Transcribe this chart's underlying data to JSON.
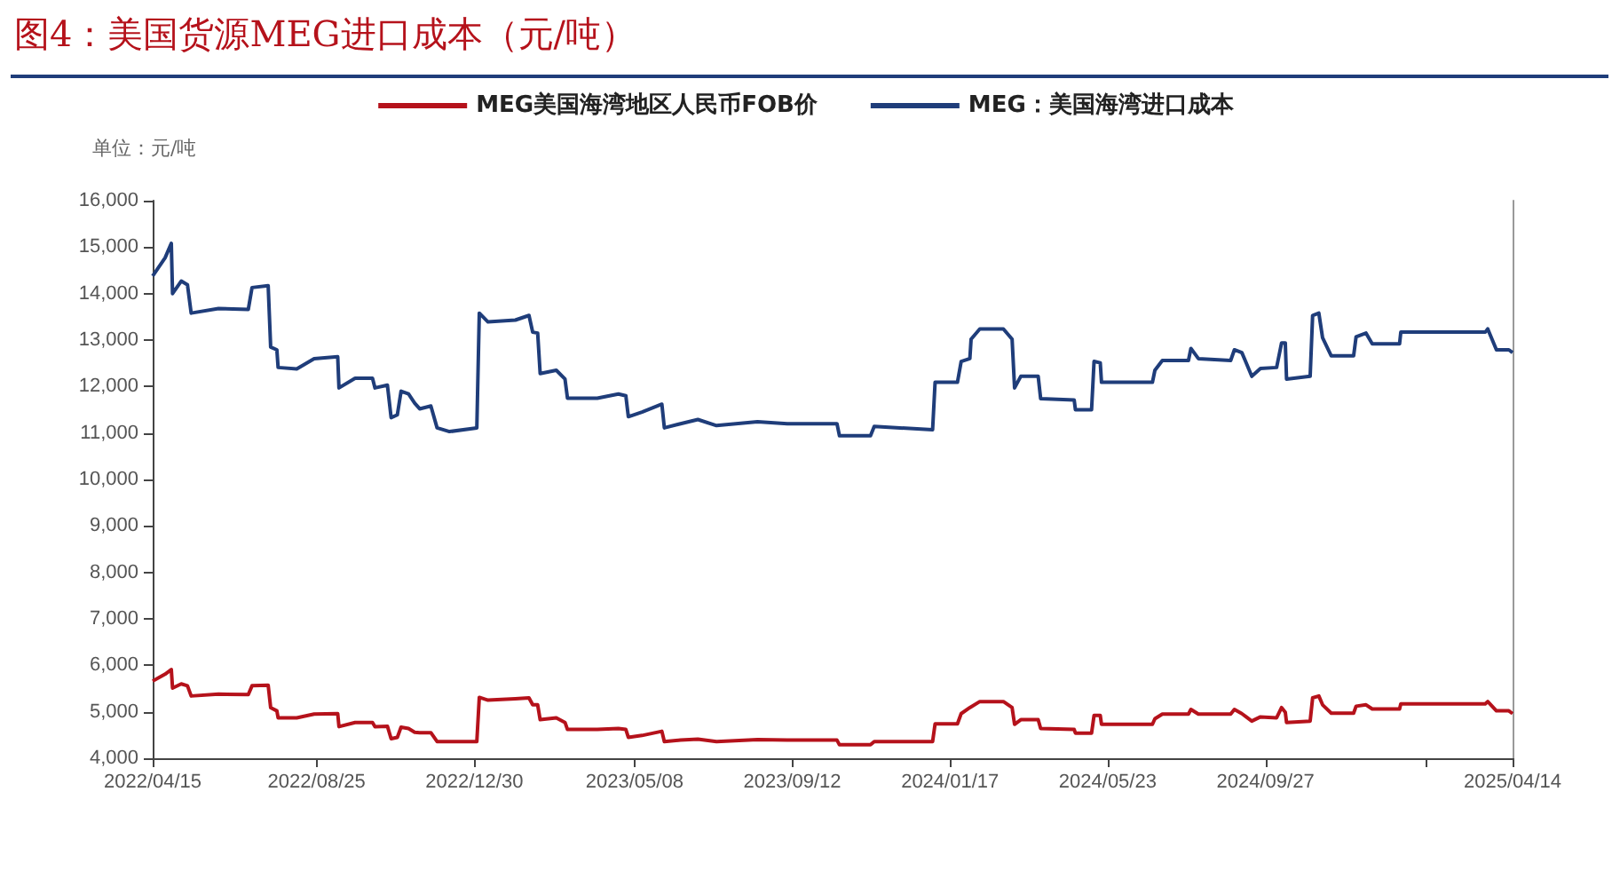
{
  "chart_data": {
    "type": "line",
    "title": "图4：美国货源MEG进口成本（元/吨）",
    "annotations": [
      "单位：元/吨"
    ],
    "x": [
      "2022-04-15",
      "2022-04-25",
      "2022-04-30",
      "2022-05-01",
      "2022-05-08",
      "2022-05-13",
      "2022-05-16",
      "2022-06-07",
      "2022-07-01",
      "2022-07-04",
      "2022-07-17",
      "2022-07-19",
      "2022-07-24",
      "2022-07-25",
      "2022-08-09",
      "2022-08-23",
      "2022-09-11",
      "2022-09-12",
      "2022-09-25",
      "2022-10-09",
      "2022-10-11",
      "2022-10-21",
      "2022-10-24",
      "2022-10-29",
      "2022-11-01",
      "2022-11-07",
      "2022-11-12",
      "2022-11-16",
      "2022-11-25",
      "2022-11-30",
      "2022-12-10",
      "2023-01-01",
      "2023-01-03",
      "2023-01-10",
      "2023-02-01",
      "2023-02-12",
      "2023-02-15",
      "2023-02-19",
      "2023-02-21",
      "2023-03-06",
      "2023-03-13",
      "2023-03-15",
      "2023-04-08",
      "2023-04-25",
      "2023-05-01",
      "2023-05-03",
      "2023-05-14",
      "2023-05-30",
      "2023-06-01",
      "2023-06-14",
      "2023-06-28",
      "2023-07-13",
      "2023-08-15",
      "2023-09-08",
      "2023-10-18",
      "2023-10-20",
      "2023-11-14",
      "2023-11-17",
      "2024-01-03",
      "2024-01-05",
      "2024-01-23",
      "2024-01-26",
      "2024-02-02",
      "2024-02-03",
      "2024-02-10",
      "2024-02-29",
      "2024-03-07",
      "2024-03-09",
      "2024-03-14",
      "2024-03-28",
      "2024-03-30",
      "2024-04-26",
      "2024-04-27",
      "2024-05-10",
      "2024-05-12",
      "2024-05-17",
      "2024-05-18",
      "2024-06-28",
      "2024-06-30",
      "2024-07-06",
      "2024-07-27",
      "2024-07-29",
      "2024-08-04",
      "2024-08-30",
      "2024-09-02",
      "2024-09-08",
      "2024-09-11",
      "2024-09-16",
      "2024-09-23",
      "2024-10-06",
      "2024-10-10",
      "2024-10-13",
      "2024-10-14",
      "2024-11-02",
      "2024-11-04",
      "2024-11-09",
      "2024-11-12",
      "2024-11-19",
      "2024-12-07",
      "2024-12-09",
      "2024-12-17",
      "2024-12-22",
      "2025-01-13",
      "2025-01-14",
      "2025-03-23",
      "2025-03-25",
      "2025-04-01",
      "2025-04-11",
      "2025-04-14"
    ],
    "series": [
      {
        "name": "MEG美国海湾地区人民币FOB价",
        "color": "#b5121b",
        "values": [
          5660,
          5810,
          5910,
          5510,
          5600,
          5560,
          5340,
          5380,
          5370,
          5560,
          5570,
          5090,
          5020,
          4870,
          4870,
          4950,
          4960,
          4680,
          4770,
          4770,
          4680,
          4690,
          4420,
          4450,
          4670,
          4640,
          4560,
          4550,
          4550,
          4360,
          4360,
          4360,
          5310,
          5250,
          5280,
          5300,
          5150,
          5150,
          4830,
          4870,
          4770,
          4620,
          4620,
          4640,
          4620,
          4450,
          4490,
          4580,
          4360,
          4390,
          4410,
          4360,
          4400,
          4390,
          4390,
          4290,
          4290,
          4360,
          4360,
          4740,
          4740,
          4960,
          5090,
          5090,
          5220,
          5220,
          5090,
          4730,
          4830,
          4830,
          4640,
          4620,
          4540,
          4540,
          4920,
          4920,
          4730,
          4730,
          4850,
          4950,
          4950,
          5050,
          4950,
          4950,
          5050,
          4960,
          4900,
          4800,
          4890,
          4870,
          5090,
          4990,
          4770,
          4800,
          5300,
          5340,
          5150,
          4970,
          4970,
          5120,
          5150,
          5060,
          5060,
          5170,
          5170,
          5220,
          5020,
          5020,
          4960
        ]
      },
      {
        "name": "MEG：美国海湾进口成本",
        "color": "#1f3d7a",
        "values": [
          14380,
          14770,
          15080,
          14000,
          14270,
          14190,
          13580,
          13680,
          13660,
          14130,
          14170,
          12850,
          12790,
          12410,
          12380,
          12600,
          12640,
          11970,
          12180,
          12180,
          11970,
          12030,
          11330,
          11390,
          11900,
          11840,
          11640,
          11520,
          11580,
          11110,
          11030,
          11110,
          13580,
          13390,
          13430,
          13530,
          13170,
          13150,
          12280,
          12350,
          12160,
          11750,
          11750,
          11840,
          11800,
          11350,
          11450,
          11620,
          11110,
          11200,
          11290,
          11160,
          11240,
          11200,
          11200,
          10940,
          10940,
          11140,
          11070,
          12090,
          12090,
          12540,
          12600,
          13020,
          13240,
          13240,
          13020,
          11970,
          12220,
          12220,
          11740,
          11710,
          11500,
          11500,
          12540,
          12510,
          12090,
          12090,
          12350,
          12560,
          12560,
          12820,
          12600,
          12560,
          12790,
          12730,
          12540,
          12220,
          12390,
          12410,
          12940,
          12940,
          12160,
          12220,
          13530,
          13580,
          13050,
          12660,
          12660,
          13070,
          13150,
          12920,
          12920,
          13170,
          13170,
          13240,
          12790,
          12790,
          12730
        ]
      }
    ],
    "xlim": [
      "2022-04-15",
      "2025-04-14"
    ],
    "xticks": [
      {
        "value": "2022-04-15",
        "label": "2022/04/15"
      },
      {
        "value": "2022-08-25",
        "label": "2022/08/25"
      },
      {
        "value": "2022-12-30",
        "label": "2022/12/30"
      },
      {
        "value": "2023-05-08",
        "label": "2023/05/08"
      },
      {
        "value": "2023-09-12",
        "label": "2023/09/12"
      },
      {
        "value": "2024-01-17",
        "label": "2024/01/17"
      },
      {
        "value": "2024-05-23",
        "label": "2024/05/23"
      },
      {
        "value": "2024-09-27",
        "label": "2024/09/27"
      },
      {
        "value": "2025-02-04",
        "label": null
      },
      {
        "value": "2025-04-14",
        "label": "2025/04/14"
      }
    ],
    "ylim": [
      4000,
      16000
    ],
    "yticks": [
      {
        "value": 4000,
        "label": "4,000"
      },
      {
        "value": 5000,
        "label": "5,000"
      },
      {
        "value": 6000,
        "label": "6,000"
      },
      {
        "value": 7000,
        "label": "7,000"
      },
      {
        "value": 8000,
        "label": "8,000"
      },
      {
        "value": 9000,
        "label": "9,000"
      },
      {
        "value": 10000,
        "label": "10,000"
      },
      {
        "value": 11000,
        "label": "11,000"
      },
      {
        "value": 12000,
        "label": "12,000"
      },
      {
        "value": 13000,
        "label": "13,000"
      },
      {
        "value": 14000,
        "label": "14,000"
      },
      {
        "value": 15000,
        "label": "15,000"
      },
      {
        "value": 16000,
        "label": "16,000"
      }
    ],
    "legend": "top",
    "marker": "none"
  }
}
